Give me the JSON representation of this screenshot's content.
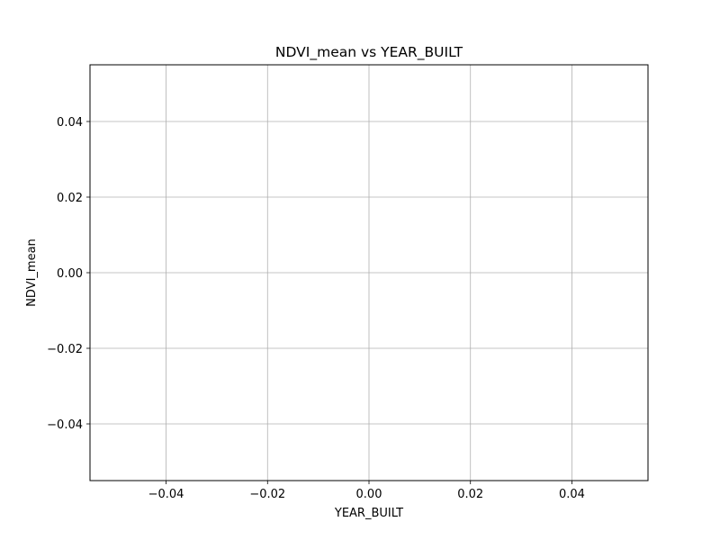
{
  "chart_data": {
    "type": "scatter",
    "title": "NDVI_mean vs YEAR_BUILT",
    "xlabel": "YEAR_BUILT",
    "ylabel": "NDVI_mean",
    "x": [],
    "y": [],
    "xlim": [
      -0.055,
      0.055
    ],
    "ylim": [
      -0.055,
      0.055
    ],
    "xticks": [
      -0.04,
      -0.02,
      0.0,
      0.02,
      0.04
    ],
    "xtick_labels": [
      "−0.04",
      "−0.02",
      "0.00",
      "0.02",
      "0.04"
    ],
    "yticks": [
      -0.04,
      -0.02,
      0.0,
      0.02,
      0.04
    ],
    "ytick_labels": [
      "−0.04",
      "−0.02",
      "0.00",
      "0.02",
      "0.04"
    ],
    "grid": true,
    "colors": {
      "grid": "#b0b0b0",
      "spine": "#000000",
      "text": "#000000",
      "background": "#ffffff"
    }
  }
}
